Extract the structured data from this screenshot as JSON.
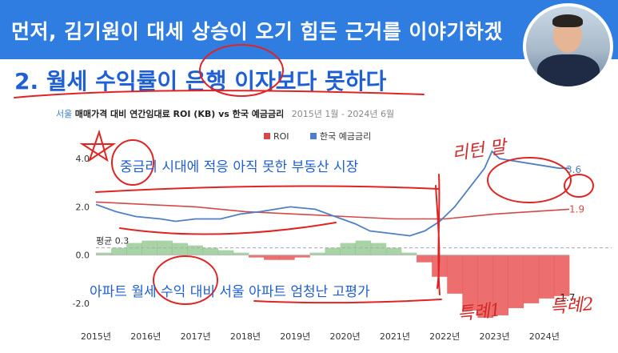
{
  "banner": {
    "text": "먼저, 김기원이 대세 상승이 오기 힘든 근거를 이야기하겠"
  },
  "subtitle": "2. 월세 수익률이 은행 이자보다 못하다",
  "chart_data": {
    "type": "line",
    "title_city": "서울",
    "title_main": "매매가격 대비 연간임대료 ROI (KB) vs 한국 예금금리",
    "title_period": "2015년 1월 - 2024년 6월",
    "legend": [
      "ROI",
      "한국 예금금리"
    ],
    "legend_position": "top-right",
    "colors": {
      "roi_line": "#d44848",
      "deposit": "#4f7fc4",
      "pos_fill": "#5fae5c",
      "neg_fill": "#e84a4a",
      "avg_line": "#aaaaaa"
    },
    "x_ticks": [
      "2015년",
      "2016년",
      "2017년",
      "2018년",
      "2019년",
      "2020년",
      "2021년",
      "2022년",
      "2023년",
      "2024년"
    ],
    "y_ticks": [
      "4.0",
      "2.0",
      "0.0",
      "-2.0"
    ],
    "ylim": [
      -2.7,
      5.2
    ],
    "average_label": "평균 0.3",
    "average_value": 0.3,
    "end_label_deposit": "3.6",
    "end_label_roi": "1.9",
    "end_label_gap": "-1.7",
    "series": [
      {
        "name": "ROI",
        "x": [
          2015.0,
          2016.0,
          2017.0,
          2018.0,
          2019.0,
          2020.0,
          2021.0,
          2022.0,
          2023.0,
          2024.5
        ],
        "values": [
          2.2,
          2.1,
          2.0,
          1.8,
          1.7,
          1.6,
          1.5,
          1.5,
          1.7,
          1.9
        ]
      },
      {
        "name": "한국 예금금리",
        "x": [
          2015.0,
          2015.4,
          2015.8,
          2016.3,
          2016.6,
          2017.0,
          2017.5,
          2017.9,
          2018.3,
          2018.6,
          2018.9,
          2019.4,
          2019.8,
          2020.2,
          2020.5,
          2020.9,
          2021.3,
          2021.6,
          2021.9,
          2022.2,
          2022.5,
          2022.8,
          2022.95,
          2023.1,
          2023.4,
          2023.7,
          2024.0,
          2024.3,
          2024.5
        ],
        "values": [
          2.1,
          1.8,
          1.6,
          1.5,
          1.4,
          1.5,
          1.5,
          1.7,
          1.8,
          1.9,
          2.0,
          1.9,
          1.6,
          1.3,
          1.0,
          0.9,
          0.8,
          1.0,
          1.4,
          2.0,
          2.8,
          3.6,
          4.3,
          4.0,
          3.9,
          3.8,
          3.7,
          3.6,
          3.6
        ]
      }
    ],
    "gap_bars": {
      "x_start": 2015.0,
      "x_end": 2024.5,
      "values": [
        0.1,
        0.3,
        0.5,
        0.6,
        0.6,
        0.5,
        0.4,
        0.3,
        0.2,
        0.1,
        -0.1,
        -0.2,
        -0.2,
        -0.1,
        0.1,
        0.3,
        0.5,
        0.6,
        0.5,
        0.3,
        0.1,
        -0.3,
        -0.9,
        -1.6,
        -2.3,
        -2.6,
        -2.5,
        -2.2,
        -2.0,
        -1.8,
        -1.7
      ]
    }
  },
  "annotations": {
    "top_text": "중금리 시대에 적응 아직 못한 부동산 시장",
    "bottom_text": "아파트 월세 수익 대비 서울 아파트 엄청난 고평가",
    "handwritten_1": "리턴 말",
    "handwritten_2": "특례1",
    "handwritten_3": "특례2"
  }
}
